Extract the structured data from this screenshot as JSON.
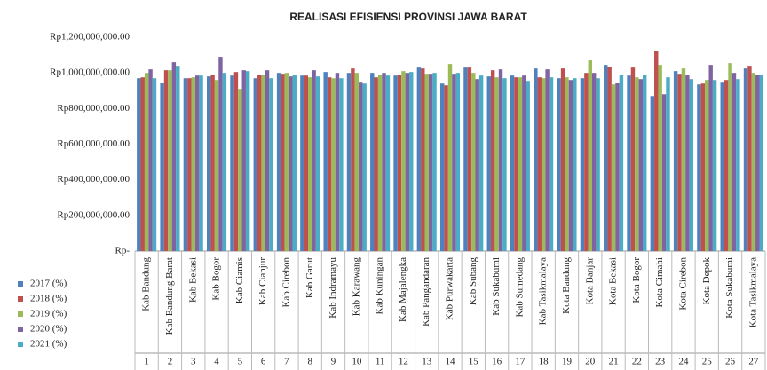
{
  "chart_data": {
    "type": "bar",
    "title": "REALISASI EFISIENSI PROVINSI JAWA BARAT",
    "categories": [
      "Kab Bandung",
      "Kab Bandung Barat",
      "Kab Bekasi",
      "Kab Bogor",
      "Kab Ciamis",
      "Kab Cianjur",
      "Kab Cirebon",
      "Kab Garut",
      "Kab Indramayu",
      "Kab Karawang",
      "Kab Kuningan",
      "Kab Majalengka",
      "Kab Pangandaran",
      "Kab Purwakarta",
      "Kab Subang",
      "Kab Sukabumi",
      "Kab Sumedang",
      "Kab Tasikmalaya",
      "Kota Bandung",
      "Kota Banjar",
      "Kota Bekasi",
      "Kota Bogor",
      "Kota Cimahi",
      "Kota Cirebon",
      "Kota Depok",
      "Kota Sukabumi",
      "Kota Tasikmalaya"
    ],
    "category_numbers": [
      1,
      2,
      3,
      4,
      5,
      6,
      7,
      8,
      9,
      10,
      11,
      12,
      13,
      14,
      15,
      16,
      17,
      18,
      19,
      20,
      21,
      22,
      23,
      24,
      25,
      26,
      27
    ],
    "series": [
      {
        "name": "2017 (%)",
        "color": "#4f81bd",
        "values": [
          970000000,
          945000000,
          970000000,
          980000000,
          985000000,
          970000000,
          1000000000,
          985000000,
          1005000000,
          1000000000,
          1000000000,
          985000000,
          1030000000,
          940000000,
          1030000000,
          980000000,
          985000000,
          1025000000,
          970000000,
          970000000,
          1045000000,
          985000000,
          870000000,
          1010000000,
          935000000,
          950000000,
          1025000000
        ]
      },
      {
        "name": " 2018 (%)",
        "color": "#c0504d",
        "values": [
          975000000,
          1015000000,
          970000000,
          990000000,
          1005000000,
          990000000,
          995000000,
          985000000,
          975000000,
          1025000000,
          975000000,
          990000000,
          1025000000,
          930000000,
          1030000000,
          1015000000,
          975000000,
          975000000,
          1025000000,
          1000000000,
          1035000000,
          1030000000,
          1125000000,
          995000000,
          940000000,
          960000000,
          1040000000
        ]
      },
      {
        "name": "2019 (%)",
        "color": "#9bbb59",
        "values": [
          1000000000,
          1015000000,
          975000000,
          960000000,
          910000000,
          990000000,
          1000000000,
          975000000,
          970000000,
          1000000000,
          990000000,
          1010000000,
          995000000,
          1050000000,
          1000000000,
          975000000,
          975000000,
          970000000,
          975000000,
          1070000000,
          935000000,
          975000000,
          1045000000,
          1025000000,
          960000000,
          1055000000,
          1000000000
        ]
      },
      {
        "name": "2020 (%)",
        "color": "#8064a2",
        "values": [
          1020000000,
          1060000000,
          985000000,
          1090000000,
          1015000000,
          1015000000,
          980000000,
          1015000000,
          1000000000,
          950000000,
          1000000000,
          1000000000,
          995000000,
          995000000,
          965000000,
          1020000000,
          985000000,
          1020000000,
          960000000,
          1000000000,
          945000000,
          965000000,
          880000000,
          990000000,
          1045000000,
          1000000000,
          990000000
        ]
      },
      {
        "name": "2021 (%)",
        "color": "#4bacc6",
        "values": [
          970000000,
          1040000000,
          985000000,
          1000000000,
          1010000000,
          970000000,
          990000000,
          980000000,
          970000000,
          940000000,
          985000000,
          1005000000,
          1000000000,
          1000000000,
          985000000,
          970000000,
          955000000,
          975000000,
          970000000,
          970000000,
          990000000,
          990000000,
          975000000,
          965000000,
          960000000,
          965000000,
          990000000
        ]
      }
    ],
    "ylim": [
      0,
      1200000000
    ],
    "yticks": [
      {
        "value": 0,
        "label": "Rp-"
      },
      {
        "value": 200000000,
        "label": "Rp200,000,000.00"
      },
      {
        "value": 400000000,
        "label": "Rp400,000,000.00"
      },
      {
        "value": 600000000,
        "label": "Rp600,000,000.00"
      },
      {
        "value": 800000000,
        "label": "Rp800,000,000.00"
      },
      {
        "value": 1000000000,
        "label": "Rp1,000,000,000.00"
      },
      {
        "value": 1200000000,
        "label": "Rp1,200,000,000.00"
      }
    ],
    "grid": false,
    "legend": "left"
  }
}
